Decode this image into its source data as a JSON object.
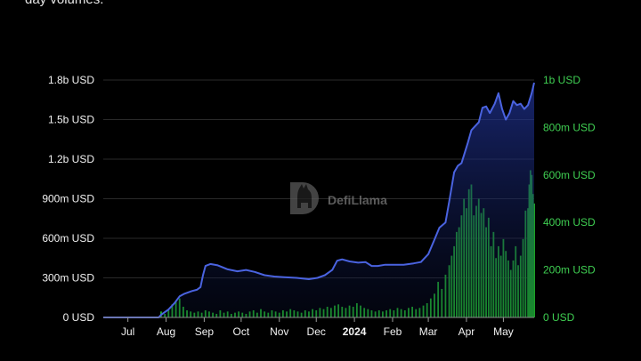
{
  "caption": "day volumes.",
  "watermark": {
    "text": "DefiLlama",
    "icon": "llama-logo-icon"
  },
  "colors": {
    "tvl_line": "#4a63e0",
    "tvl_fill_top": "#1e2f8a",
    "volume_bars": "#1fb52b",
    "right_axis_text": "#3fcf52",
    "grid": "#2a2a2a"
  },
  "chart_data": {
    "type": "line+bar",
    "x_ticks": [
      {
        "label": "Jul",
        "date": "2023-07-01",
        "bold": false
      },
      {
        "label": "Aug",
        "date": "2023-08-01",
        "bold": false
      },
      {
        "label": "Sep",
        "date": "2023-09-01",
        "bold": false
      },
      {
        "label": "Oct",
        "date": "2023-10-01",
        "bold": false
      },
      {
        "label": "Nov",
        "date": "2023-11-01",
        "bold": false
      },
      {
        "label": "Dec",
        "date": "2023-12-01",
        "bold": false
      },
      {
        "label": "2024",
        "date": "2024-01-01",
        "bold": true
      },
      {
        "label": "Feb",
        "date": "2024-02-01",
        "bold": false
      },
      {
        "label": "Mar",
        "date": "2024-03-01",
        "bold": false
      },
      {
        "label": "Apr",
        "date": "2024-04-01",
        "bold": false
      },
      {
        "label": "May",
        "date": "2024-05-01",
        "bold": false
      }
    ],
    "x_range": [
      "2023-06-11",
      "2024-05-26"
    ],
    "y_left": {
      "ticks": [
        "0 USD",
        "300m USD",
        "600m USD",
        "900m USD",
        "1.2b USD",
        "1.5b USD",
        "1.8b USD"
      ],
      "values": [
        0,
        300000000,
        600000000,
        900000000,
        1200000000,
        1500000000,
        1800000000
      ],
      "range": [
        0,
        1800000000
      ]
    },
    "y_right": {
      "ticks": [
        "0 USD",
        "200m USD",
        "400m USD",
        "600m USD",
        "800m USD",
        "1b USD"
      ],
      "values": [
        0,
        200000000,
        400000000,
        600000000,
        800000000,
        1000000000
      ],
      "range": [
        0,
        1000000000
      ]
    },
    "grid": true,
    "series": [
      {
        "type": "area",
        "axis": "left",
        "points": [
          [
            "2023-06-11",
            0
          ],
          [
            "2023-07-15",
            0
          ],
          [
            "2023-07-26",
            0
          ],
          [
            "2023-07-28",
            20000000
          ],
          [
            "2023-08-03",
            60000000
          ],
          [
            "2023-08-08",
            110000000
          ],
          [
            "2023-08-12",
            160000000
          ],
          [
            "2023-08-16",
            180000000
          ],
          [
            "2023-08-22",
            200000000
          ],
          [
            "2023-08-26",
            210000000
          ],
          [
            "2023-08-29",
            230000000
          ],
          [
            "2023-08-31",
            320000000
          ],
          [
            "2023-09-02",
            390000000
          ],
          [
            "2023-09-06",
            405000000
          ],
          [
            "2023-09-12",
            395000000
          ],
          [
            "2023-09-20",
            365000000
          ],
          [
            "2023-09-28",
            350000000
          ],
          [
            "2023-10-05",
            360000000
          ],
          [
            "2023-10-12",
            345000000
          ],
          [
            "2023-10-20",
            320000000
          ],
          [
            "2023-10-28",
            310000000
          ],
          [
            "2023-11-05",
            305000000
          ],
          [
            "2023-11-15",
            300000000
          ],
          [
            "2023-11-25",
            290000000
          ],
          [
            "2023-12-02",
            300000000
          ],
          [
            "2023-12-08",
            320000000
          ],
          [
            "2023-12-14",
            360000000
          ],
          [
            "2023-12-18",
            430000000
          ],
          [
            "2023-12-22",
            440000000
          ],
          [
            "2023-12-28",
            425000000
          ],
          [
            "2024-01-04",
            415000000
          ],
          [
            "2024-01-10",
            420000000
          ],
          [
            "2024-01-15",
            390000000
          ],
          [
            "2024-01-20",
            390000000
          ],
          [
            "2024-01-26",
            400000000
          ],
          [
            "2024-02-02",
            400000000
          ],
          [
            "2024-02-10",
            400000000
          ],
          [
            "2024-02-18",
            410000000
          ],
          [
            "2024-02-24",
            420000000
          ],
          [
            "2024-03-01",
            480000000
          ],
          [
            "2024-03-06",
            590000000
          ],
          [
            "2024-03-10",
            680000000
          ],
          [
            "2024-03-15",
            720000000
          ],
          [
            "2024-03-18",
            880000000
          ],
          [
            "2024-03-22",
            1100000000
          ],
          [
            "2024-03-25",
            1150000000
          ],
          [
            "2024-03-28",
            1170000000
          ],
          [
            "2024-04-02",
            1320000000
          ],
          [
            "2024-04-05",
            1420000000
          ],
          [
            "2024-04-08",
            1450000000
          ],
          [
            "2024-04-11",
            1480000000
          ],
          [
            "2024-04-14",
            1590000000
          ],
          [
            "2024-04-17",
            1600000000
          ],
          [
            "2024-04-20",
            1550000000
          ],
          [
            "2024-04-24",
            1620000000
          ],
          [
            "2024-04-27",
            1700000000
          ],
          [
            "2024-04-30",
            1580000000
          ],
          [
            "2024-05-03",
            1500000000
          ],
          [
            "2024-05-06",
            1550000000
          ],
          [
            "2024-05-09",
            1640000000
          ],
          [
            "2024-05-12",
            1610000000
          ],
          [
            "2024-05-15",
            1620000000
          ],
          [
            "2024-05-18",
            1580000000
          ],
          [
            "2024-05-21",
            1610000000
          ],
          [
            "2024-05-24",
            1700000000
          ],
          [
            "2024-05-26",
            1780000000
          ]
        ]
      },
      {
        "type": "bar",
        "axis": "right",
        "points": [
          [
            "2023-07-28",
            25000000
          ],
          [
            "2023-07-31",
            15000000
          ],
          [
            "2023-08-03",
            30000000
          ],
          [
            "2023-08-06",
            55000000
          ],
          [
            "2023-08-09",
            70000000
          ],
          [
            "2023-08-12",
            80000000
          ],
          [
            "2023-08-15",
            45000000
          ],
          [
            "2023-08-18",
            30000000
          ],
          [
            "2023-08-21",
            25000000
          ],
          [
            "2023-08-24",
            20000000
          ],
          [
            "2023-08-27",
            25000000
          ],
          [
            "2023-08-30",
            20000000
          ],
          [
            "2023-09-02",
            30000000
          ],
          [
            "2023-09-05",
            25000000
          ],
          [
            "2023-09-08",
            20000000
          ],
          [
            "2023-09-11",
            15000000
          ],
          [
            "2023-09-14",
            30000000
          ],
          [
            "2023-09-17",
            20000000
          ],
          [
            "2023-09-20",
            25000000
          ],
          [
            "2023-09-23",
            15000000
          ],
          [
            "2023-09-26",
            20000000
          ],
          [
            "2023-09-29",
            25000000
          ],
          [
            "2023-10-02",
            20000000
          ],
          [
            "2023-10-05",
            15000000
          ],
          [
            "2023-10-08",
            25000000
          ],
          [
            "2023-10-11",
            30000000
          ],
          [
            "2023-10-14",
            20000000
          ],
          [
            "2023-10-17",
            35000000
          ],
          [
            "2023-10-20",
            25000000
          ],
          [
            "2023-10-23",
            20000000
          ],
          [
            "2023-10-26",
            30000000
          ],
          [
            "2023-10-29",
            25000000
          ],
          [
            "2023-11-01",
            20000000
          ],
          [
            "2023-11-04",
            30000000
          ],
          [
            "2023-11-07",
            25000000
          ],
          [
            "2023-11-10",
            35000000
          ],
          [
            "2023-11-13",
            30000000
          ],
          [
            "2023-11-16",
            25000000
          ],
          [
            "2023-11-19",
            20000000
          ],
          [
            "2023-11-22",
            30000000
          ],
          [
            "2023-11-25",
            25000000
          ],
          [
            "2023-11-28",
            35000000
          ],
          [
            "2023-12-01",
            30000000
          ],
          [
            "2023-12-04",
            40000000
          ],
          [
            "2023-12-07",
            35000000
          ],
          [
            "2023-12-10",
            45000000
          ],
          [
            "2023-12-13",
            40000000
          ],
          [
            "2023-12-16",
            50000000
          ],
          [
            "2023-12-19",
            55000000
          ],
          [
            "2023-12-22",
            45000000
          ],
          [
            "2023-12-25",
            40000000
          ],
          [
            "2023-12-28",
            50000000
          ],
          [
            "2023-12-31",
            45000000
          ],
          [
            "2024-01-03",
            60000000
          ],
          [
            "2024-01-06",
            50000000
          ],
          [
            "2024-01-09",
            40000000
          ],
          [
            "2024-01-12",
            35000000
          ],
          [
            "2024-01-15",
            30000000
          ],
          [
            "2024-01-18",
            25000000
          ],
          [
            "2024-01-21",
            30000000
          ],
          [
            "2024-01-24",
            25000000
          ],
          [
            "2024-01-27",
            30000000
          ],
          [
            "2024-01-30",
            35000000
          ],
          [
            "2024-02-02",
            30000000
          ],
          [
            "2024-02-05",
            40000000
          ],
          [
            "2024-02-08",
            35000000
          ],
          [
            "2024-02-11",
            30000000
          ],
          [
            "2024-02-14",
            40000000
          ],
          [
            "2024-02-17",
            45000000
          ],
          [
            "2024-02-20",
            35000000
          ],
          [
            "2024-02-23",
            40000000
          ],
          [
            "2024-02-26",
            50000000
          ],
          [
            "2024-02-29",
            60000000
          ],
          [
            "2024-03-03",
            80000000
          ],
          [
            "2024-03-06",
            100000000
          ],
          [
            "2024-03-09",
            150000000
          ],
          [
            "2024-03-12",
            120000000
          ],
          [
            "2024-03-15",
            180000000
          ],
          [
            "2024-03-18",
            220000000
          ],
          [
            "2024-03-20",
            260000000
          ],
          [
            "2024-03-22",
            300000000
          ],
          [
            "2024-03-24",
            360000000
          ],
          [
            "2024-03-26",
            380000000
          ],
          [
            "2024-03-28",
            430000000
          ],
          [
            "2024-03-30",
            500000000
          ],
          [
            "2024-04-01",
            460000000
          ],
          [
            "2024-04-03",
            540000000
          ],
          [
            "2024-04-05",
            560000000
          ],
          [
            "2024-04-07",
            430000000
          ],
          [
            "2024-04-09",
            470000000
          ],
          [
            "2024-04-11",
            500000000
          ],
          [
            "2024-04-13",
            440000000
          ],
          [
            "2024-04-15",
            460000000
          ],
          [
            "2024-04-17",
            380000000
          ],
          [
            "2024-04-19",
            420000000
          ],
          [
            "2024-04-21",
            300000000
          ],
          [
            "2024-04-23",
            360000000
          ],
          [
            "2024-04-25",
            250000000
          ],
          [
            "2024-04-27",
            300000000
          ],
          [
            "2024-04-29",
            260000000
          ],
          [
            "2024-05-01",
            330000000
          ],
          [
            "2024-05-03",
            280000000
          ],
          [
            "2024-05-05",
            240000000
          ],
          [
            "2024-05-07",
            200000000
          ],
          [
            "2024-05-09",
            240000000
          ],
          [
            "2024-05-11",
            300000000
          ],
          [
            "2024-05-13",
            220000000
          ],
          [
            "2024-05-15",
            260000000
          ],
          [
            "2024-05-17",
            330000000
          ],
          [
            "2024-05-19",
            450000000
          ],
          [
            "2024-05-21",
            460000000
          ],
          [
            "2024-05-22",
            560000000
          ],
          [
            "2024-05-23",
            620000000
          ],
          [
            "2024-05-24",
            600000000
          ],
          [
            "2024-05-25",
            520000000
          ],
          [
            "2024-05-26",
            480000000
          ]
        ]
      }
    ]
  }
}
